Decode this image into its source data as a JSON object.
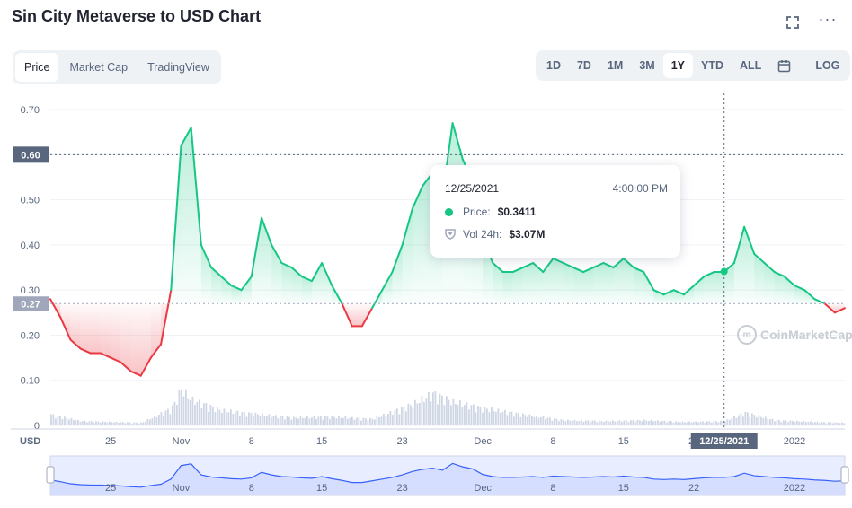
{
  "header": {
    "title": "Sin City Metaverse to USD Chart"
  },
  "tabs_left": [
    "Price",
    "Market Cap",
    "TradingView"
  ],
  "tabs_right": [
    "1D",
    "7D",
    "1M",
    "3M",
    "1Y",
    "YTD",
    "ALL"
  ],
  "log_label": "LOG",
  "active_left": "Price",
  "active_right": "1Y",
  "tooltip": {
    "date": "12/25/2021",
    "time": "4:00:00 PM",
    "price_label": "Price:",
    "price_value": "$0.3411",
    "vol_label": "Vol 24h:",
    "vol_value": "$3.07M"
  },
  "watermark": "CoinMarketCap",
  "colors": {
    "up": "#16c784",
    "down": "#ea3943",
    "volume": "#cfd6e4",
    "navigator": "#3861fb"
  },
  "chart_data": {
    "type": "line",
    "y_axis_ticks": [
      "0.70",
      "0.60",
      "0.50",
      "0.40",
      "0.30",
      "0.20",
      "0.10",
      "0"
    ],
    "ylim": [
      0,
      0.72
    ],
    "x_axis_ticks": [
      "25",
      "Nov",
      "8",
      "15",
      "Dec",
      "8",
      "15",
      "22",
      "2022"
    ],
    "x_ticks_full": [
      "25",
      "Nov",
      "8",
      "15",
      "23",
      "Dec",
      "8",
      "15",
      "22",
      "2022"
    ],
    "navigator_ticks": [
      "25",
      "Nov",
      "8",
      "15",
      "23",
      "Dec",
      "8",
      "15",
      "22",
      "2022"
    ],
    "ylabel": "USD",
    "baseline_label": "0.27",
    "crosshair_label": "0.60",
    "crosshair_date": "12/25/2021",
    "x_start": "2021-10-19",
    "x_end": "2022-01-06",
    "baseline": 0.27,
    "series": [
      {
        "values": [
          [
            "2021-10-19",
            0.28
          ],
          [
            "2021-10-20",
            0.24
          ],
          [
            "2021-10-21",
            0.19
          ],
          [
            "2021-10-22",
            0.17
          ],
          [
            "2021-10-23",
            0.16
          ],
          [
            "2021-10-24",
            0.16
          ],
          [
            "2021-10-25",
            0.15
          ],
          [
            "2021-10-26",
            0.14
          ],
          [
            "2021-10-27",
            0.12
          ],
          [
            "2021-10-28",
            0.11
          ],
          [
            "2021-10-29",
            0.15
          ],
          [
            "2021-10-30",
            0.18
          ],
          [
            "2021-10-31",
            0.3
          ],
          [
            "2021-11-01",
            0.62
          ],
          [
            "2021-11-02",
            0.66
          ],
          [
            "2021-11-03",
            0.4
          ],
          [
            "2021-11-04",
            0.35
          ],
          [
            "2021-11-05",
            0.33
          ],
          [
            "2021-11-06",
            0.31
          ],
          [
            "2021-11-07",
            0.3
          ],
          [
            "2021-11-08",
            0.33
          ],
          [
            "2021-11-09",
            0.46
          ],
          [
            "2021-11-10",
            0.4
          ],
          [
            "2021-11-11",
            0.36
          ],
          [
            "2021-11-12",
            0.35
          ],
          [
            "2021-11-13",
            0.33
          ],
          [
            "2021-11-14",
            0.32
          ],
          [
            "2021-11-15",
            0.36
          ],
          [
            "2021-11-16",
            0.31
          ],
          [
            "2021-11-17",
            0.27
          ],
          [
            "2021-11-18",
            0.22
          ],
          [
            "2021-11-19",
            0.22
          ],
          [
            "2021-11-20",
            0.26
          ],
          [
            "2021-11-21",
            0.3
          ],
          [
            "2021-11-22",
            0.34
          ],
          [
            "2021-11-23",
            0.4
          ],
          [
            "2021-11-24",
            0.48
          ],
          [
            "2021-11-25",
            0.53
          ],
          [
            "2021-11-26",
            0.56
          ],
          [
            "2021-11-27",
            0.51
          ],
          [
            "2021-11-28",
            0.67
          ],
          [
            "2021-11-29",
            0.59
          ],
          [
            "2021-11-30",
            0.54
          ],
          [
            "2021-12-01",
            0.41
          ],
          [
            "2021-12-02",
            0.36
          ],
          [
            "2021-12-03",
            0.34
          ],
          [
            "2021-12-04",
            0.34
          ],
          [
            "2021-12-05",
            0.35
          ],
          [
            "2021-12-06",
            0.36
          ],
          [
            "2021-12-07",
            0.34
          ],
          [
            "2021-12-08",
            0.37
          ],
          [
            "2021-12-09",
            0.36
          ],
          [
            "2021-12-10",
            0.35
          ],
          [
            "2021-12-11",
            0.34
          ],
          [
            "2021-12-12",
            0.35
          ],
          [
            "2021-12-13",
            0.36
          ],
          [
            "2021-12-14",
            0.35
          ],
          [
            "2021-12-15",
            0.37
          ],
          [
            "2021-12-16",
            0.35
          ],
          [
            "2021-12-17",
            0.34
          ],
          [
            "2021-12-18",
            0.3
          ],
          [
            "2021-12-19",
            0.29
          ],
          [
            "2021-12-20",
            0.3
          ],
          [
            "2021-12-21",
            0.29
          ],
          [
            "2021-12-22",
            0.31
          ],
          [
            "2021-12-23",
            0.33
          ],
          [
            "2021-12-24",
            0.34
          ],
          [
            "2021-12-25",
            0.34
          ],
          [
            "2021-12-26",
            0.36
          ],
          [
            "2021-12-27",
            0.44
          ],
          [
            "2021-12-28",
            0.38
          ],
          [
            "2021-12-29",
            0.36
          ],
          [
            "2021-12-30",
            0.34
          ],
          [
            "2021-12-31",
            0.33
          ],
          [
            "2022-01-01",
            0.31
          ],
          [
            "2022-01-02",
            0.3
          ],
          [
            "2022-01-03",
            0.28
          ],
          [
            "2022-01-04",
            0.27
          ],
          [
            "2022-01-05",
            0.25
          ],
          [
            "2022-01-06",
            0.26
          ]
        ]
      }
    ],
    "volume": [
      [
        "2021-10-19",
        0.25
      ],
      [
        "2021-10-22",
        0.1
      ],
      [
        "2021-10-25",
        0.08
      ],
      [
        "2021-10-28",
        0.06
      ],
      [
        "2021-10-31",
        0.4
      ],
      [
        "2021-11-01",
        0.85
      ],
      [
        "2021-11-02",
        0.6
      ],
      [
        "2021-11-05",
        0.35
      ],
      [
        "2021-11-09",
        0.25
      ],
      [
        "2021-11-12",
        0.18
      ],
      [
        "2021-11-16",
        0.2
      ],
      [
        "2021-11-20",
        0.15
      ],
      [
        "2021-11-24",
        0.5
      ],
      [
        "2021-11-26",
        0.75
      ],
      [
        "2021-11-28",
        0.55
      ],
      [
        "2021-12-01",
        0.4
      ],
      [
        "2021-12-05",
        0.25
      ],
      [
        "2021-12-09",
        0.12
      ],
      [
        "2021-12-13",
        0.1
      ],
      [
        "2021-12-17",
        0.12
      ],
      [
        "2021-12-21",
        0.08
      ],
      [
        "2021-12-25",
        0.1
      ],
      [
        "2021-12-27",
        0.3
      ],
      [
        "2021-12-30",
        0.12
      ],
      [
        "2022-01-03",
        0.08
      ],
      [
        "2022-01-06",
        0.06
      ]
    ]
  }
}
